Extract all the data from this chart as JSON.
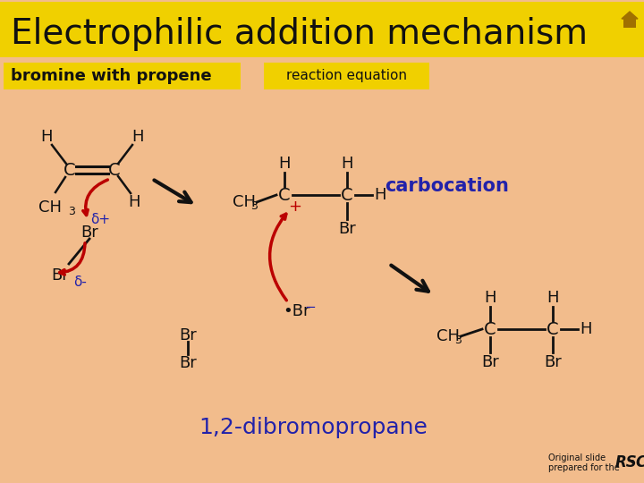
{
  "bg_color": "#F2BC8C",
  "title_bg": "#F0D000",
  "title_text": "Electrophilic addition mechanism",
  "subtitle_left": "bromine with propene",
  "subtitle_right": "reaction equation",
  "carbocation_label": "carbocation",
  "product_label": "1,2-dibromopropane",
  "footer": "Original slide\nprepared for the",
  "black": "#111111",
  "red": "#BB0000",
  "blue": "#2222AA",
  "yellow": "#F0D000"
}
